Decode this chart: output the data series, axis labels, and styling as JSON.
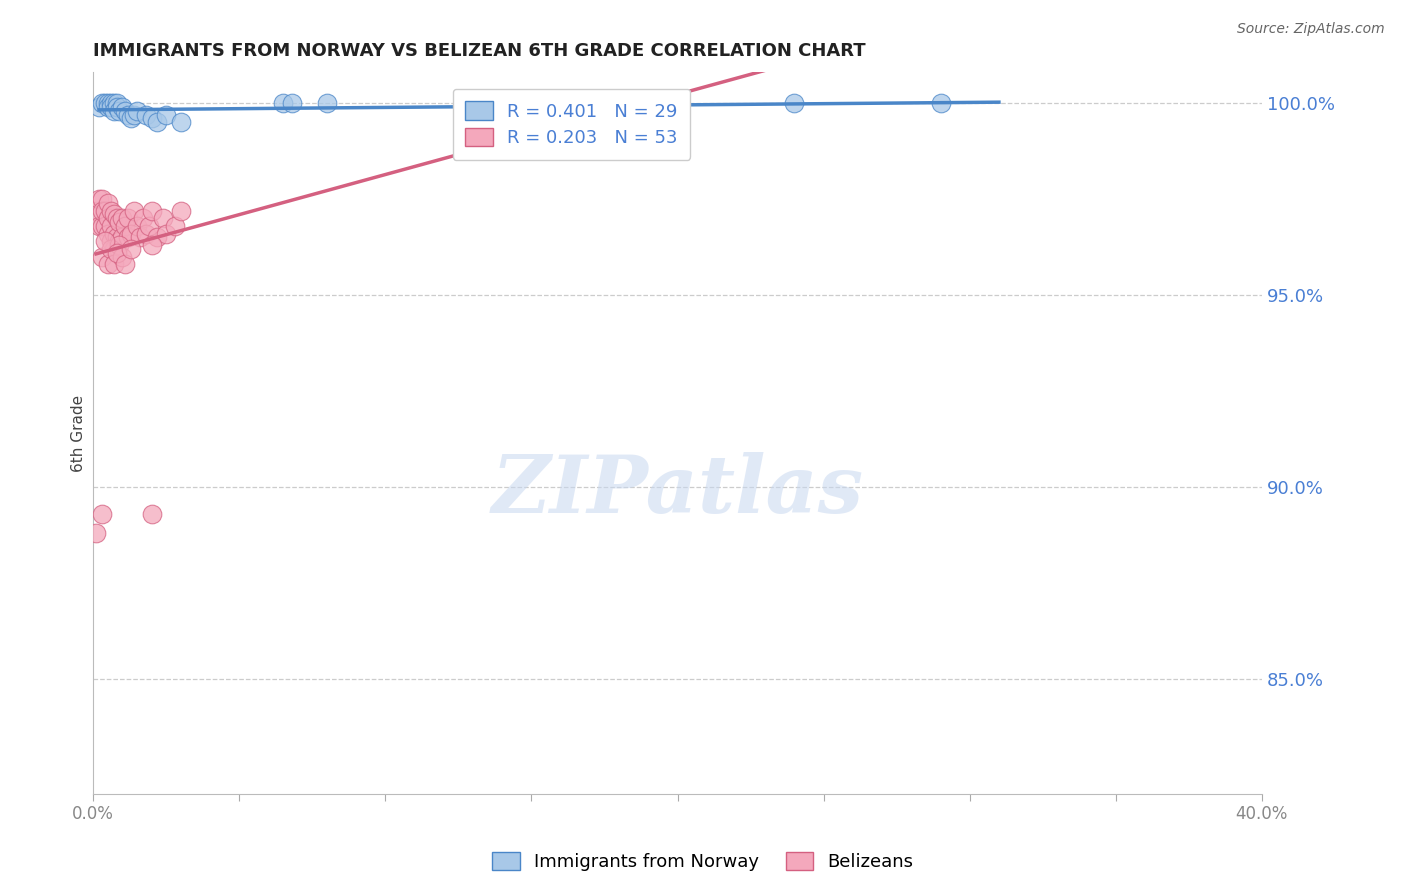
{
  "title": "IMMIGRANTS FROM NORWAY VS BELIZEAN 6TH GRADE CORRELATION CHART",
  "source": "Source: ZipAtlas.com",
  "ylabel": "6th Grade",
  "xlim": [
    0.0,
    0.4
  ],
  "ylim": [
    0.82,
    1.008
  ],
  "yticks_right": [
    1.0,
    0.95,
    0.9,
    0.85
  ],
  "ytick_labels_right": [
    "100.0%",
    "95.0%",
    "90.0%",
    "85.0%"
  ],
  "R_norway": 0.401,
  "N_norway": 29,
  "R_belize": 0.203,
  "N_belize": 53,
  "norway_color": "#a8c8e8",
  "belize_color": "#f4a8bc",
  "norway_line_color": "#4a86c8",
  "belize_line_color": "#d46080",
  "legend_norway": "Immigrants from Norway",
  "legend_belize": "Belizeans",
  "norway_x": [
    0.002,
    0.003,
    0.004,
    0.005,
    0.005,
    0.006,
    0.006,
    0.007,
    0.007,
    0.008,
    0.008,
    0.009,
    0.01,
    0.011,
    0.012,
    0.013,
    0.014,
    0.015,
    0.018,
    0.02,
    0.022,
    0.025,
    0.065,
    0.08,
    0.135,
    0.24,
    0.29,
    0.03,
    0.068
  ],
  "norway_y": [
    0.999,
    1.0,
    1.0,
    1.0,
    0.999,
    1.0,
    0.999,
    1.0,
    0.998,
    1.0,
    0.999,
    0.998,
    0.999,
    0.998,
    0.997,
    0.996,
    0.997,
    0.998,
    0.997,
    0.996,
    0.995,
    0.997,
    1.0,
    1.0,
    0.999,
    1.0,
    1.0,
    0.995,
    1.0
  ],
  "belize_x": [
    0.001,
    0.002,
    0.002,
    0.003,
    0.003,
    0.003,
    0.004,
    0.004,
    0.005,
    0.005,
    0.005,
    0.006,
    0.006,
    0.006,
    0.007,
    0.007,
    0.007,
    0.008,
    0.008,
    0.009,
    0.009,
    0.01,
    0.01,
    0.011,
    0.012,
    0.012,
    0.013,
    0.014,
    0.015,
    0.016,
    0.017,
    0.018,
    0.019,
    0.02,
    0.022,
    0.024,
    0.025,
    0.028,
    0.03,
    0.003,
    0.005,
    0.006,
    0.007,
    0.009,
    0.01,
    0.004,
    0.008,
    0.011,
    0.013,
    0.02,
    0.001,
    0.003,
    0.02
  ],
  "belize_y": [
    0.972,
    0.975,
    0.968,
    0.975,
    0.968,
    0.972,
    0.972,
    0.968,
    0.974,
    0.97,
    0.966,
    0.972,
    0.968,
    0.964,
    0.971,
    0.966,
    0.962,
    0.97,
    0.965,
    0.969,
    0.964,
    0.97,
    0.965,
    0.968,
    0.965,
    0.97,
    0.966,
    0.972,
    0.968,
    0.965,
    0.97,
    0.966,
    0.968,
    0.972,
    0.965,
    0.97,
    0.966,
    0.968,
    0.972,
    0.96,
    0.958,
    0.962,
    0.958,
    0.963,
    0.96,
    0.964,
    0.961,
    0.958,
    0.962,
    0.963,
    0.888,
    0.893,
    0.893
  ],
  "background_color": "#ffffff",
  "grid_color": "#cccccc",
  "title_color": "#222222",
  "axis_label_color": "#444444",
  "tick_label_color_right": "#4a7fd4",
  "tick_label_color_bottom": "#888888",
  "legend_box_color_norway": "#a8c8e8",
  "legend_box_color_belize": "#f4a8bc",
  "watermark_text": "ZIPatlas",
  "watermark_color": "#c8d8f0"
}
